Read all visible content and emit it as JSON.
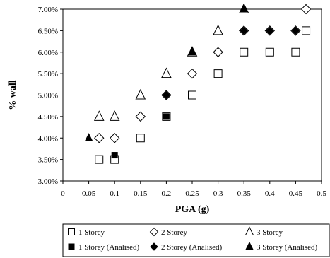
{
  "chart_data": {
    "type": "scatter",
    "title": "",
    "xlabel": "PGA (g)",
    "ylabel": "% wall",
    "xlim": [
      0,
      0.5
    ],
    "ylim": [
      3.0,
      7.0
    ],
    "xticks": [
      "0",
      "0.05",
      "0.1",
      "0.15",
      "0.2",
      "0.25",
      "0.3",
      "0.35",
      "0.4",
      "0.45",
      "0.5"
    ],
    "yticks": [
      "3.00%",
      "3.50%",
      "4.00%",
      "4.50%",
      "5.00%",
      "5.50%",
      "6.00%",
      "6.50%",
      "7.00%"
    ],
    "grid": false,
    "legend_position": "bottom",
    "series": [
      {
        "name": "1 Storey",
        "marker": "square",
        "filled": false,
        "points": [
          [
            0.07,
            3.5
          ],
          [
            0.1,
            3.5
          ],
          [
            0.15,
            4.0
          ],
          [
            0.2,
            4.5
          ],
          [
            0.25,
            5.0
          ],
          [
            0.3,
            5.5
          ],
          [
            0.35,
            6.0
          ],
          [
            0.4,
            6.0
          ],
          [
            0.45,
            6.0
          ],
          [
            0.47,
            6.5
          ]
        ]
      },
      {
        "name": "2 Storey",
        "marker": "diamond",
        "filled": false,
        "points": [
          [
            0.07,
            4.0
          ],
          [
            0.1,
            4.0
          ],
          [
            0.15,
            4.5
          ],
          [
            0.2,
            5.0
          ],
          [
            0.25,
            5.5
          ],
          [
            0.3,
            6.0
          ],
          [
            0.35,
            6.5
          ],
          [
            0.4,
            6.5
          ],
          [
            0.45,
            6.5
          ],
          [
            0.47,
            7.0
          ]
        ]
      },
      {
        "name": "3 Storey",
        "marker": "triangle",
        "filled": false,
        "points": [
          [
            0.07,
            4.5
          ],
          [
            0.1,
            4.5
          ],
          [
            0.15,
            5.0
          ],
          [
            0.2,
            5.5
          ],
          [
            0.25,
            6.0
          ],
          [
            0.3,
            6.5
          ],
          [
            0.35,
            7.0
          ]
        ]
      },
      {
        "name": "1 Storey (Analised)",
        "marker": "square",
        "filled": true,
        "points": [
          [
            0.1,
            3.6
          ],
          [
            0.2,
            4.5
          ]
        ]
      },
      {
        "name": "2 Storey (Analised)",
        "marker": "diamond",
        "filled": true,
        "points": [
          [
            0.2,
            5.0
          ],
          [
            0.35,
            6.5
          ],
          [
            0.4,
            6.5
          ],
          [
            0.45,
            6.5
          ]
        ]
      },
      {
        "name": "3 Storey (Analised)",
        "marker": "triangle",
        "filled": true,
        "points": [
          [
            0.05,
            4.0
          ],
          [
            0.25,
            6.0
          ],
          [
            0.35,
            7.0
          ]
        ]
      }
    ]
  }
}
